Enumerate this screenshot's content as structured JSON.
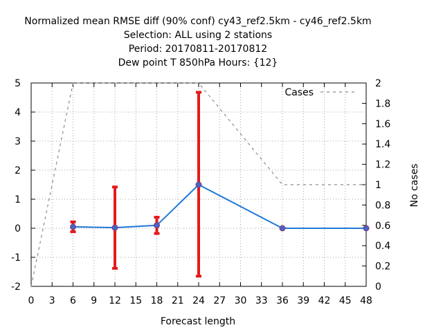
{
  "chart_data": {
    "type": "line",
    "title_lines": [
      "Normalized mean RMSE diff (90% conf) cy43_ref2.5km - cy46_ref2.5km",
      "Selection: ALL using      2 stations",
      "Period: 20170811-20170812",
      "Dew point T 850hPa   Hours: {12}"
    ],
    "xlabel": "Forecast length",
    "y2label": "No cases",
    "xlim": [
      0,
      48
    ],
    "ylim": [
      -2,
      5
    ],
    "y2lim": [
      0,
      2
    ],
    "xticks": [
      0,
      3,
      6,
      9,
      12,
      15,
      18,
      21,
      24,
      27,
      30,
      33,
      36,
      39,
      42,
      45,
      48
    ],
    "yticks": [
      -2,
      -1,
      0,
      1,
      2,
      3,
      4,
      5
    ],
    "y2ticks": [
      "0",
      "0.2",
      "0.4",
      "0.6",
      "0.8",
      "1",
      "1.2",
      "1.4",
      "1.6",
      "1.8",
      "2"
    ],
    "grid": true,
    "legend_position": "top-right",
    "series": [
      {
        "name": "",
        "color": "#1f78d8",
        "x": [
          6,
          12,
          18,
          24,
          36,
          48
        ],
        "y": [
          0.05,
          0.02,
          0.1,
          1.5,
          0.0,
          0.0
        ],
        "err_low": [
          -0.12,
          -1.38,
          -0.18,
          -1.65,
          0.0,
          0.0
        ],
        "err_high": [
          0.22,
          1.42,
          0.38,
          4.68,
          0.0,
          0.0
        ]
      },
      {
        "name": "Cases",
        "axis": "right",
        "color": "#8a8a8a",
        "x": [
          0,
          6,
          12,
          18,
          24,
          36,
          48
        ],
        "y": [
          0,
          2,
          2,
          2,
          2,
          1,
          1
        ]
      }
    ]
  }
}
